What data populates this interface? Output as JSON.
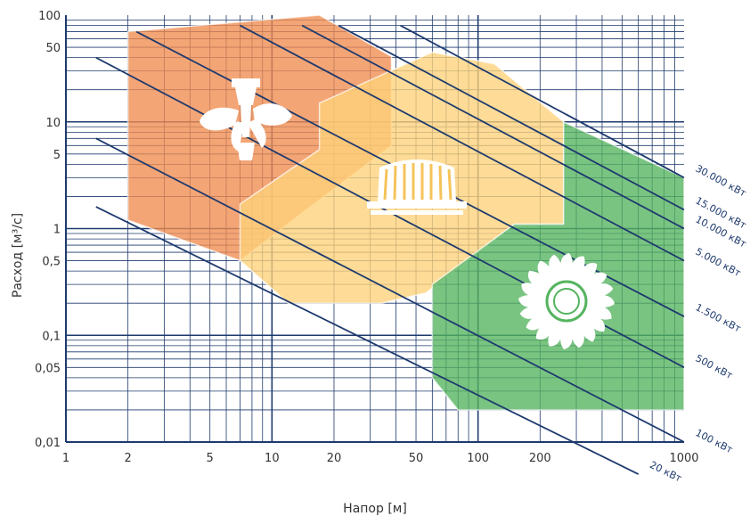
{
  "chart_data": {
    "type": "scatter",
    "title": "",
    "xlabel": "Напор [м]",
    "ylabel": "Расход [м³/с]",
    "x_scale": "log",
    "y_scale": "log",
    "xlim": [
      1,
      1000
    ],
    "ylim": [
      0.01,
      100
    ],
    "x_ticks": [
      {
        "value": 1,
        "label": "1"
      },
      {
        "value": 2,
        "label": "2"
      },
      {
        "value": 5,
        "label": "5"
      },
      {
        "value": 10,
        "label": "10"
      },
      {
        "value": 20,
        "label": "20"
      },
      {
        "value": 50,
        "label": "50"
      },
      {
        "value": 100,
        "label": "100"
      },
      {
        "value": 200,
        "label": "200"
      },
      {
        "value": 1000,
        "label": "1000"
      }
    ],
    "y_ticks": [
      {
        "value": 0.01,
        "label": "0,01"
      },
      {
        "value": 0.05,
        "label": "0,05"
      },
      {
        "value": 0.1,
        "label": "0,1"
      },
      {
        "value": 0.5,
        "label": "0,5"
      },
      {
        "value": 1,
        "label": "1"
      },
      {
        "value": 5,
        "label": "5"
      },
      {
        "value": 10,
        "label": "10"
      },
      {
        "value": 50,
        "label": "50"
      },
      {
        "value": 100,
        "label": "100"
      }
    ],
    "grid": true,
    "colors": {
      "grid": "#1e3a6e",
      "kaplan": "#f08c50",
      "francis": "#fed27a",
      "pelton": "#55b45f",
      "power_line": "#1e3a6e"
    },
    "regions": [
      {
        "icon": "kaplan-turbine-icon",
        "color": "#f08c50",
        "points": [
          [
            2,
            70
          ],
          [
            17,
            100
          ],
          [
            38,
            41
          ],
          [
            38,
            6
          ],
          [
            14,
            1.4
          ],
          [
            7,
            0.5
          ],
          [
            2,
            1.2
          ]
        ]
      },
      {
        "icon": "francis-turbine-icon",
        "color": "#fed27a",
        "points": [
          [
            17,
            15
          ],
          [
            60,
            45
          ],
          [
            120,
            35
          ],
          [
            260,
            10
          ],
          [
            260,
            1.1
          ],
          [
            150,
            1.1
          ],
          [
            56,
            0.25
          ],
          [
            34,
            0.2
          ],
          [
            12,
            0.2
          ],
          [
            7,
            0.5
          ],
          [
            7,
            1.7
          ],
          [
            17,
            5.5
          ]
        ]
      },
      {
        "icon": "pelton-turbine-icon",
        "color": "#55b45f",
        "points": [
          [
            260,
            10
          ],
          [
            1000,
            3
          ],
          [
            1000,
            0.02
          ],
          [
            80,
            0.02
          ],
          [
            60,
            0.04
          ],
          [
            60,
            0.3
          ],
          [
            150,
            1.1
          ],
          [
            260,
            1.1
          ]
        ]
      }
    ],
    "power_lines": [
      {
        "label": "20 кВт",
        "points": [
          [
            1.4,
            1.6
          ],
          [
            600,
            0.005
          ]
        ]
      },
      {
        "label": "100 кВт",
        "points": [
          [
            1.4,
            7
          ],
          [
            1000,
            0.01
          ]
        ]
      },
      {
        "label": "500 кВт",
        "points": [
          [
            1.4,
            40
          ],
          [
            1000,
            0.05
          ]
        ]
      },
      {
        "label": "1.500 кВт",
        "points": [
          [
            2.2,
            70
          ],
          [
            1000,
            0.15
          ]
        ]
      },
      {
        "label": "5.000 кВт",
        "points": [
          [
            7,
            80
          ],
          [
            1000,
            0.5
          ]
        ]
      },
      {
        "label": "10.000 кВт",
        "points": [
          [
            14,
            80
          ],
          [
            1000,
            1
          ]
        ]
      },
      {
        "label": "15.000 кВт",
        "points": [
          [
            21,
            80
          ],
          [
            1000,
            1.5
          ]
        ]
      },
      {
        "label": "30.000 кВт",
        "points": [
          [
            42,
            80
          ],
          [
            1000,
            3
          ]
        ]
      }
    ]
  }
}
